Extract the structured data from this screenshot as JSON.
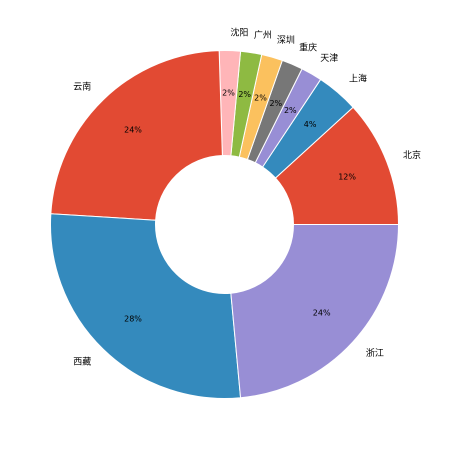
{
  "chart_data": {
    "type": "pie",
    "donut": true,
    "start_direction": "east",
    "direction": "counterclockwise",
    "slices": [
      {
        "label": "北京",
        "value": 12,
        "pct_label": "12%",
        "color": "#E24A33"
      },
      {
        "label": "上海",
        "value": 4,
        "pct_label": "4%",
        "color": "#348ABD"
      },
      {
        "label": "天津",
        "value": 2,
        "pct_label": "2%",
        "color": "#988ED5"
      },
      {
        "label": "重庆",
        "value": 2,
        "pct_label": "2%",
        "color": "#777777"
      },
      {
        "label": "深圳",
        "value": 2,
        "pct_label": "2%",
        "color": "#FBC15E"
      },
      {
        "label": "广州",
        "value": 2,
        "pct_label": "2%",
        "color": "#8EBA42"
      },
      {
        "label": "沈阳",
        "value": 2,
        "pct_label": "2%",
        "color": "#FFB5B8"
      },
      {
        "label": "云南",
        "value": 24,
        "pct_label": "24%",
        "color": "#E24A33"
      },
      {
        "label": "西藏",
        "value": 28,
        "pct_label": "28%",
        "color": "#348ABD"
      },
      {
        "label": "浙江",
        "value": 24,
        "pct_label": "24%",
        "color": "#988ED5"
      }
    ]
  }
}
